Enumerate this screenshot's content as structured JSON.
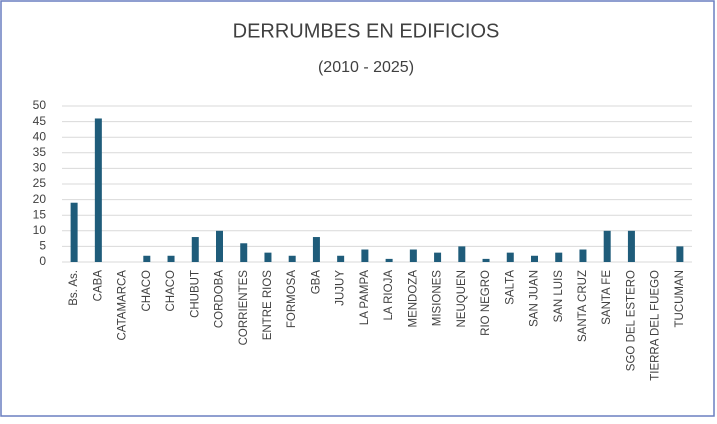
{
  "chart_data": {
    "type": "bar",
    "title": "DERRUMBES EN EDIFICIOS",
    "subtitle": "(2010 - 2025)",
    "categories": [
      "Bs. As.",
      "CABA",
      "CATAMARCA",
      "CHACO",
      "CHACO",
      "CHUBUT",
      "CORDOBA",
      "CORRIENTES",
      "ENTRE RIOS",
      "FORMOSA",
      "GBA",
      "JUJUY",
      "LA PAMPA",
      "LA RIOJA",
      "MENDOZA",
      "MISIONES",
      "NEUQUEN",
      "RIO NEGRO",
      "SALTA",
      "SAN JUAN",
      "SAN LUIS",
      "SANTA CRUZ",
      "SANTA FE",
      "SGO DEL ESTERO",
      "TIERRA DEL FUEGO",
      "TUCUMAN"
    ],
    "values": [
      19,
      46,
      0,
      2,
      2,
      8,
      10,
      6,
      3,
      2,
      8,
      2,
      4,
      1,
      4,
      3,
      5,
      1,
      3,
      2,
      3,
      4,
      10,
      10,
      0,
      5
    ],
    "color": "#1f5c7a",
    "ylim": [
      0,
      50
    ],
    "yticks": [
      0,
      5,
      10,
      15,
      20,
      25,
      30,
      35,
      40,
      45,
      50
    ],
    "grid": true
  }
}
